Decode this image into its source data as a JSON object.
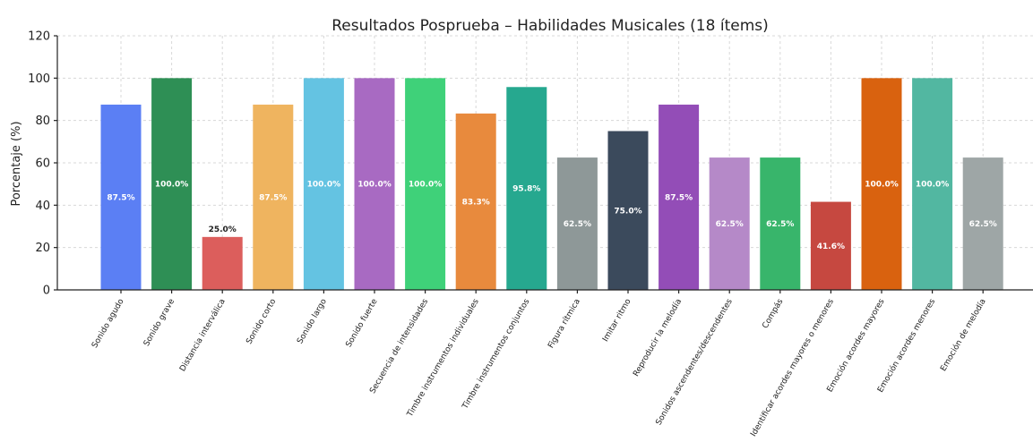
{
  "chart_data": {
    "type": "bar",
    "title": "Resultados Posprueba – Habilidades Musicales (18 ítems)",
    "xlabel": "",
    "ylabel": "Porcentaje (%)",
    "ylim": [
      0,
      120
    ],
    "yticks": [
      "0",
      "20",
      "40",
      "60",
      "80",
      "100",
      "120"
    ],
    "grid": true,
    "categories": [
      "Sonido agudo",
      "Sonido grave",
      "Distancia interválica",
      "Sonido corto",
      "Sonido largo",
      "Sonido fuerte",
      "Secuencia de intensidades",
      "Timbre instrumentos individuales",
      "Timbre instrumentos conjuntos",
      "Figura rítmica",
      "Imitar ritmo",
      "Reproducir la melodía",
      "Sonidos ascendentes/descendentes",
      "Compás",
      "Identificar acordes mayores o menores",
      "Emoción acordes mayores",
      "Emoción acordes menores",
      "Emoción de melodía"
    ],
    "values": [
      87.5,
      100.0,
      25.0,
      87.5,
      100.0,
      100.0,
      100.0,
      83.3,
      95.8,
      62.5,
      75.0,
      87.5,
      62.5,
      62.5,
      41.6,
      100.0,
      100.0,
      62.5
    ],
    "data_labels": [
      "87.5%",
      "100.0%",
      "25.0%",
      "87.5%",
      "100.0%",
      "100.0%",
      "100.0%",
      "83.3%",
      "95.8%",
      "62.5%",
      "75.0%",
      "87.5%",
      "62.5%",
      "62.5%",
      "41.6%",
      "100.0%",
      "100.0%",
      "62.5%"
    ],
    "colors": [
      "#5b7ff4",
      "#2e8f55",
      "#dc5e5c",
      "#efb45f",
      "#64c3e2",
      "#a86ac2",
      "#3fd179",
      "#e88a3d",
      "#26a88f",
      "#8e9898",
      "#3b4a5c",
      "#934db7",
      "#b589c8",
      "#38b56b",
      "#c64840",
      "#d9620f",
      "#52b7a1",
      "#9ea6a6"
    ]
  }
}
